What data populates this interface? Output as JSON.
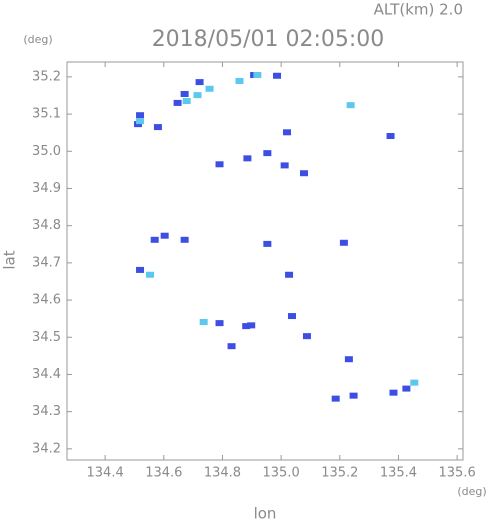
{
  "chart_data": {
    "type": "scatter",
    "title": "2018/05/01 02:05:00",
    "subtitle": "ALT(km) 2.0",
    "x_label": "lon",
    "y_label": "lat",
    "x_unit": "(deg)",
    "y_unit": "(deg)",
    "xlim": [
      134.27,
      135.62
    ],
    "ylim": [
      34.17,
      35.24
    ],
    "xticks": [
      134.4,
      134.6,
      134.8,
      {
        "value": 135,
        "label": "135.0"
      },
      135.2,
      135.4,
      135.6
    ],
    "yticks": [
      34.2,
      34.3,
      34.4,
      34.5,
      34.6,
      34.7,
      34.8,
      34.9,
      {
        "value": 35,
        "label": "35.0"
      },
      35.1,
      35.2
    ],
    "series": [
      {
        "color": "#3d4fe2",
        "x": [
          134.512,
          134.519,
          134.58,
          134.647,
          134.671,
          134.722,
          134.908,
          134.986,
          134.79,
          134.885,
          135.02,
          134.953,
          135.012,
          135.078,
          135.373,
          134.569,
          134.603,
          134.671,
          134.953,
          135.214,
          134.519,
          135.027,
          135.037,
          134.881,
          134.79,
          134.898,
          135.088,
          134.831,
          135.231,
          135.186,
          135.247,
          135.383,
          135.427
        ],
        "y": [
          35.073,
          35.097,
          35.065,
          35.13,
          35.154,
          35.186,
          35.205,
          35.203,
          34.965,
          34.981,
          35.051,
          34.995,
          34.962,
          34.941,
          35.041,
          34.762,
          34.773,
          34.762,
          34.751,
          34.754,
          34.681,
          34.668,
          34.557,
          34.53,
          34.538,
          34.532,
          34.503,
          34.476,
          34.441,
          34.335,
          34.343,
          34.351,
          34.362
        ]
      },
      {
        "color": "#5cc8ee",
        "x": [
          134.519,
          134.678,
          134.715,
          134.756,
          134.858,
          134.919,
          135.237,
          134.736,
          135.454,
          134.553
        ],
        "y": [
          35.081,
          35.135,
          35.151,
          35.168,
          35.189,
          35.205,
          35.124,
          34.541,
          34.378,
          34.668
        ]
      }
    ]
  }
}
